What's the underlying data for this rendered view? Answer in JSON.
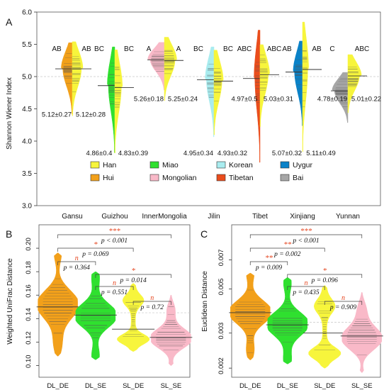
{
  "panel_labels": [
    "A",
    "B",
    "C"
  ],
  "colors": {
    "Han": "#f7f53c",
    "Hui": "#f2a01a",
    "Miao": "#2fe02f",
    "Mongolian": "#f9b9c8",
    "Korean": "#a9ecef",
    "Tibetan": "#ea4d1c",
    "Uygur": "#0a82c8",
    "Bai": "#a6a6a6"
  },
  "chart_data": [
    {
      "type": "violin",
      "subtype": "split",
      "ylabel": "Shannon Wiener Index",
      "ylim": [
        3.0,
        6.0
      ],
      "yticks": [
        "3.0",
        "3.5",
        "4.0",
        "4.5",
        "5.0",
        "5.5",
        "6.0"
      ],
      "legend": {
        "position": "bottom",
        "entries": [
          "Han",
          "Hui",
          "Miao",
          "Mongolian",
          "Korean",
          "Tibetan",
          "Uygur",
          "Bai"
        ]
      },
      "groups": [
        {
          "x": "Gansu",
          "left": {
            "series": "Hui",
            "mean": 5.12,
            "sd": 0.27,
            "label": "5.12±0.27",
            "sig": "AB"
          },
          "right": {
            "series": "Han",
            "mean": 5.12,
            "sd": 0.28,
            "label": "5.12±0.28",
            "sig": "AB"
          }
        },
        {
          "x": "Guizhou",
          "left": {
            "series": "Miao",
            "mean": 4.86,
            "sd": 0.4,
            "label": "4.86±0.4",
            "sig": "BC"
          },
          "right": {
            "series": "Han",
            "mean": 4.83,
            "sd": 0.39,
            "label": "4.83±0.39",
            "sig": "BC"
          }
        },
        {
          "x": "InnerMongolia",
          "left": {
            "series": "Mongolian",
            "mean": 5.26,
            "sd": 0.18,
            "label": "5.26±0.18",
            "sig": "A"
          },
          "right": {
            "series": "Han",
            "mean": 5.25,
            "sd": 0.24,
            "label": "5.25±0.24",
            "sig": "A"
          }
        },
        {
          "x": "Jilin",
          "left": {
            "series": "Korean",
            "mean": 4.95,
            "sd": 0.34,
            "label": "4.95±0.34",
            "sig": "BC"
          },
          "right": {
            "series": "Han",
            "mean": 4.93,
            "sd": 0.32,
            "label": "4.93±0.32",
            "sig": "BC"
          }
        },
        {
          "x": "Tibet",
          "left": {
            "series": "Tibetan",
            "mean": 4.97,
            "sd": 0.5,
            "label": "4.97±0.5",
            "sig": "ABC"
          },
          "right": {
            "series": "Han",
            "mean": 5.03,
            "sd": 0.31,
            "label": "5.03±0.31",
            "sig": "ABC"
          }
        },
        {
          "x": "Xinjiang",
          "left": {
            "series": "Uygur",
            "mean": 5.07,
            "sd": 0.32,
            "label": "5.07±0.32",
            "sig": "AB"
          },
          "right": {
            "series": "Han",
            "mean": 5.11,
            "sd": 0.49,
            "label": "5.11±0.49",
            "sig": "AB"
          }
        },
        {
          "x": "Yunnan",
          "left": {
            "series": "Bai",
            "mean": 4.78,
            "sd": 0.19,
            "label": "4.78±0.19",
            "sig": "C"
          },
          "right": {
            "series": "Han",
            "mean": 5.01,
            "sd": 0.22,
            "label": "5.01±0.22",
            "sig": "ABC"
          }
        }
      ],
      "reference_line": 5.0
    },
    {
      "type": "violin",
      "ylabel": "Weighted UniFrac Distance",
      "ylim": [
        0.09,
        0.22
      ],
      "yticks": [
        "0.10",
        "0.12",
        "0.14",
        "0.16",
        "0.18",
        "0.20"
      ],
      "categories": [
        "DL_DE",
        "DL_SE",
        "SL_DE",
        "SL_SE"
      ],
      "series_colors": [
        "#f2a01a",
        "#2fe02f",
        "#f7f53c",
        "#f9b9c8"
      ],
      "medians": [
        0.15,
        0.143,
        0.131,
        0.124
      ],
      "ranges": [
        [
          0.108,
          0.196
        ],
        [
          0.105,
          0.18
        ],
        [
          0.112,
          0.17
        ],
        [
          0.1,
          0.16
        ]
      ],
      "reference_line": 0.145,
      "comparisons": [
        {
          "pair": [
            "DL_DE",
            "SL_SE"
          ],
          "sig": "***",
          "p": "< 0.001"
        },
        {
          "pair": [
            "DL_DE",
            "SL_DE"
          ],
          "sig": "*",
          "p": "= 0.069"
        },
        {
          "pair": [
            "DL_DE",
            "DL_SE"
          ],
          "sig": "n",
          "p": "= 0.364"
        },
        {
          "pair": [
            "DL_SE",
            "SL_SE"
          ],
          "sig": "*",
          "p": "= 0.014"
        },
        {
          "pair": [
            "DL_SE",
            "SL_DE"
          ],
          "sig": "n",
          "p": "= 0.551"
        },
        {
          "pair": [
            "SL_DE",
            "SL_SE"
          ],
          "sig": "n",
          "p": "= 0.72"
        }
      ]
    },
    {
      "type": "violin",
      "ylabel": "Euclidean Distance",
      "yscale": "log",
      "ylim": [
        0.0018,
        0.0105
      ],
      "yticks": [
        "0.002",
        "0.003",
        "0.005",
        "0.007"
      ],
      "categories": [
        "DL_DE",
        "DL_SE",
        "SL_DE",
        "SL_SE"
      ],
      "series_colors": [
        "#f2a01a",
        "#2fe02f",
        "#f7f53c",
        "#f9b9c8"
      ],
      "medians": [
        0.0038,
        0.0033,
        0.003,
        0.0029
      ],
      "ranges": [
        [
          0.0022,
          0.006
        ],
        [
          0.0021,
          0.0057
        ],
        [
          0.002,
          0.0052
        ],
        [
          0.0019,
          0.0048
        ]
      ],
      "reference_line": 0.0034,
      "comparisons": [
        {
          "pair": [
            "DL_DE",
            "SL_SE"
          ],
          "sig": "***",
          "p": "< 0.001"
        },
        {
          "pair": [
            "DL_DE",
            "SL_DE"
          ],
          "sig": "**",
          "p": "= 0.002"
        },
        {
          "pair": [
            "DL_DE",
            "DL_SE"
          ],
          "sig": "**",
          "p": "= 0.009"
        },
        {
          "pair": [
            "DL_SE",
            "SL_SE"
          ],
          "sig": "*",
          "p": "= 0.096"
        },
        {
          "pair": [
            "DL_SE",
            "SL_DE"
          ],
          "sig": "n",
          "p": "= 0.435"
        },
        {
          "pair": [
            "SL_DE",
            "SL_SE"
          ],
          "sig": "n",
          "p": "= 0.909"
        }
      ]
    }
  ]
}
